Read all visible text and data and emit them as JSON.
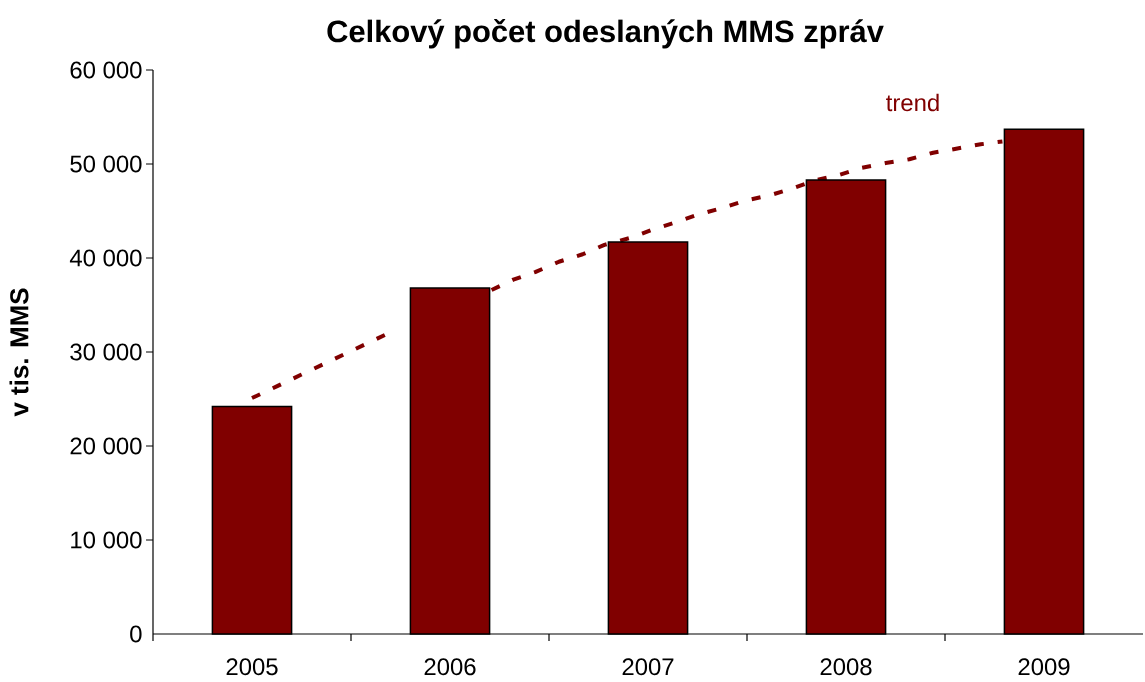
{
  "chart_data": {
    "type": "bar",
    "title": "Celkový počet odeslaných MMS zpráv",
    "ylabel": "v tis. MMS",
    "x": [
      2005,
      2006,
      2007,
      2008,
      2009
    ],
    "series": [
      {
        "type": "line",
        "name": "trend",
        "color": "#800000",
        "line_style": "dashed",
        "x": [
          2005.0,
          2005.13,
          2005.25,
          2005.37,
          2005.48,
          2005.61,
          2005.72,
          2006.0,
          2006.21,
          2006.32,
          2006.43,
          2006.55,
          2006.67,
          2006.78,
          2006.92,
          2007.02,
          2007.14,
          2007.25,
          2007.37,
          2007.49,
          2007.62,
          2007.73,
          2007.85,
          2007.96,
          2008.08,
          2008.2,
          2008.32,
          2008.44,
          2008.55,
          2008.68,
          2008.79
        ],
        "values": [
          25100,
          26400,
          27600,
          28800,
          29900,
          31200,
          32300,
          null,
          36600,
          37700,
          38500,
          39600,
          40400,
          41400,
          42200,
          43000,
          43800,
          44600,
          45300,
          46100,
          46700,
          47400,
          48300,
          48800,
          49600,
          50100,
          50500,
          51200,
          51600,
          52100,
          52400
        ]
      },
      {
        "color": "#800000",
        "values": [
          24200,
          36800,
          41700,
          48300,
          53700
        ]
      }
    ],
    "xlim": [
      2004.5,
      2009.5
    ],
    "xticks": [
      {
        "value": 2004.5,
        "label": null
      },
      2005,
      {
        "value": 2005.5,
        "label": null
      },
      2006,
      {
        "value": 2006.5,
        "label": null
      },
      2007,
      {
        "value": 2007.5,
        "label": null
      },
      2008,
      {
        "value": 2008.5,
        "label": null
      },
      2009
    ],
    "ylim": [
      0,
      60000
    ],
    "yticks": [
      0,
      {
        "value": 10000,
        "label": "10 000"
      },
      {
        "value": 20000,
        "label": "20 000"
      },
      {
        "value": 30000,
        "label": "30 000"
      },
      {
        "value": 40000,
        "label": "40 000"
      },
      {
        "value": 50000,
        "label": "50 000"
      },
      {
        "value": 60000,
        "label": "60 000"
      }
    ]
  }
}
